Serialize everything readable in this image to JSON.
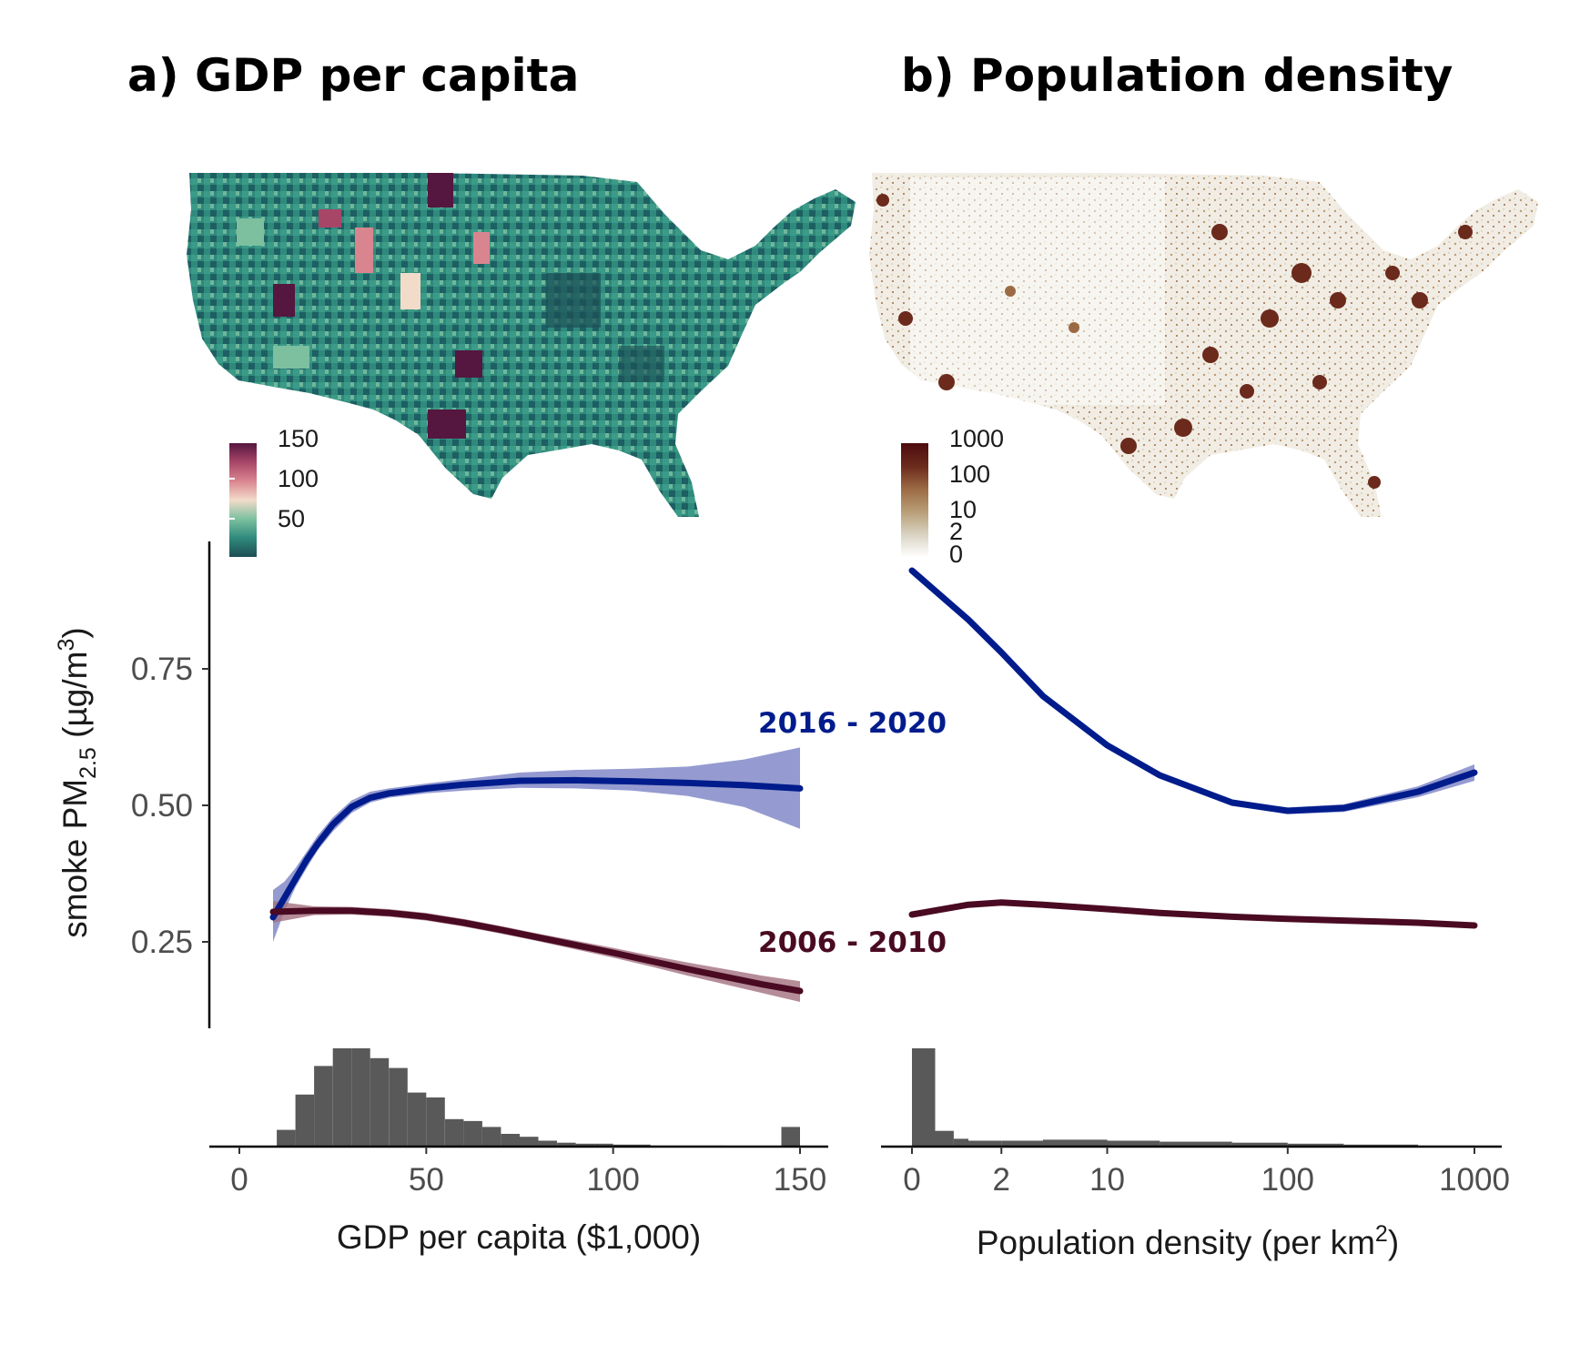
{
  "panels": {
    "a": {
      "title": "a) GDP per capita"
    },
    "b": {
      "title": "b) Population density"
    }
  },
  "legend_gdp": {
    "ticks": [
      "150",
      "100",
      "50"
    ],
    "colors": [
      "#1d4e55",
      "#2f8a7c",
      "#7cc0a0",
      "#f3dbc9",
      "#d9858f",
      "#a84668",
      "#55163f"
    ]
  },
  "legend_pop": {
    "ticks": [
      "1000",
      "100",
      "10",
      "2",
      "0"
    ],
    "colors": [
      "#ffffff",
      "#d8d2c1",
      "#b89d76",
      "#9b6a44",
      "#6b2a1c",
      "#4e0b0f"
    ]
  },
  "periods": {
    "recent": {
      "label": "2016 - 2020",
      "color": "#001c8c",
      "band_color": "#7b82c4"
    },
    "early": {
      "label": "2006 - 2010",
      "color": "#4a0a22",
      "band_color": "#a3707f"
    }
  },
  "chart_data": [
    {
      "type": "line",
      "panel": "a",
      "xlabel": "GDP per capita ($1,000)",
      "ylabel": "smoke PM2.5 (µg/m3)",
      "xlim": [
        -7,
        157
      ],
      "ylim": [
        0.12,
        0.96
      ],
      "x_ticks": [
        0,
        50,
        100,
        150
      ],
      "y_ticks": [
        0.25,
        0.5,
        0.75
      ],
      "series": [
        {
          "name": "2016 - 2020",
          "x": [
            9,
            12,
            15,
            18,
            21,
            25,
            30,
            35,
            40,
            50,
            60,
            75,
            90,
            105,
            120,
            135,
            150
          ],
          "y": [
            0.295,
            0.33,
            0.365,
            0.4,
            0.43,
            0.465,
            0.497,
            0.514,
            0.522,
            0.531,
            0.538,
            0.545,
            0.546,
            0.544,
            0.541,
            0.537,
            0.531
          ],
          "lower": [
            0.25,
            0.305,
            0.35,
            0.385,
            0.418,
            0.452,
            0.486,
            0.505,
            0.514,
            0.522,
            0.527,
            0.532,
            0.531,
            0.527,
            0.517,
            0.497,
            0.457
          ],
          "upper": [
            0.345,
            0.36,
            0.385,
            0.415,
            0.445,
            0.478,
            0.509,
            0.525,
            0.531,
            0.54,
            0.548,
            0.56,
            0.565,
            0.567,
            0.571,
            0.584,
            0.606
          ]
        },
        {
          "name": "2006 - 2010",
          "x": [
            9,
            20,
            30,
            40,
            50,
            60,
            70,
            80,
            90,
            100,
            110,
            120,
            130,
            140,
            150
          ],
          "y": [
            0.305,
            0.307,
            0.307,
            0.303,
            0.296,
            0.285,
            0.272,
            0.258,
            0.244,
            0.23,
            0.215,
            0.2,
            0.186,
            0.172,
            0.16
          ],
          "lower": [
            0.285,
            0.299,
            0.3,
            0.296,
            0.289,
            0.278,
            0.265,
            0.251,
            0.236,
            0.221,
            0.205,
            0.188,
            0.172,
            0.156,
            0.14
          ],
          "upper": [
            0.325,
            0.315,
            0.314,
            0.31,
            0.303,
            0.292,
            0.279,
            0.265,
            0.252,
            0.239,
            0.225,
            0.212,
            0.2,
            0.188,
            0.178
          ]
        }
      ],
      "histogram": {
        "bin_width": 5,
        "bin_starts": [
          10,
          15,
          20,
          25,
          30,
          35,
          40,
          45,
          50,
          55,
          60,
          65,
          70,
          75,
          80,
          85,
          90,
          95,
          100,
          105,
          110,
          115,
          120,
          125,
          130,
          135,
          140,
          145
        ],
        "counts": [
          0.17,
          0.53,
          0.82,
          1.0,
          1.0,
          0.9,
          0.8,
          0.55,
          0.5,
          0.28,
          0.26,
          0.2,
          0.13,
          0.1,
          0.06,
          0.04,
          0.03,
          0.03,
          0.02,
          0.02,
          0.01,
          0.01,
          0.01,
          0.01,
          0.005,
          0.005,
          0.005,
          0.2
        ]
      }
    },
    {
      "type": "line",
      "panel": "b",
      "xlabel": "Population density (per km2)",
      "scale": "pseudo-log",
      "x_ticks": [
        0,
        2,
        10,
        100,
        1000
      ],
      "series": [
        {
          "name": "2016 - 2020",
          "x": [
            0,
            1,
            2,
            4,
            10,
            20,
            50,
            100,
            200,
            500,
            1000
          ],
          "y": [
            0.93,
            0.84,
            0.78,
            0.7,
            0.61,
            0.555,
            0.505,
            0.49,
            0.495,
            0.525,
            0.56
          ],
          "lower": [
            0.925,
            0.836,
            0.776,
            0.696,
            0.606,
            0.551,
            0.5,
            0.484,
            0.488,
            0.515,
            0.545
          ],
          "upper": [
            0.935,
            0.844,
            0.784,
            0.704,
            0.614,
            0.559,
            0.51,
            0.496,
            0.502,
            0.535,
            0.575
          ]
        },
        {
          "name": "2006 - 2010",
          "x": [
            0,
            1,
            2,
            4,
            10,
            20,
            50,
            100,
            200,
            500,
            1000
          ],
          "y": [
            0.3,
            0.318,
            0.322,
            0.318,
            0.31,
            0.303,
            0.296,
            0.292,
            0.289,
            0.285,
            0.28
          ],
          "lower": [
            0.297,
            0.315,
            0.319,
            0.315,
            0.307,
            0.3,
            0.293,
            0.289,
            0.286,
            0.281,
            0.276
          ],
          "upper": [
            0.303,
            0.321,
            0.325,
            0.321,
            0.313,
            0.306,
            0.299,
            0.295,
            0.292,
            0.289,
            0.284
          ]
        }
      ],
      "histogram": {
        "bin_starts": [
          0,
          0.33,
          0.67,
          1,
          2,
          4,
          10,
          20,
          50,
          100,
          200,
          500
        ],
        "bin_ends": [
          0.33,
          0.67,
          1,
          2,
          4,
          10,
          20,
          50,
          100,
          200,
          500,
          1000
        ],
        "counts": [
          1.0,
          0.16,
          0.08,
          0.06,
          0.06,
          0.07,
          0.06,
          0.05,
          0.04,
          0.03,
          0.02,
          0.01
        ]
      }
    }
  ]
}
